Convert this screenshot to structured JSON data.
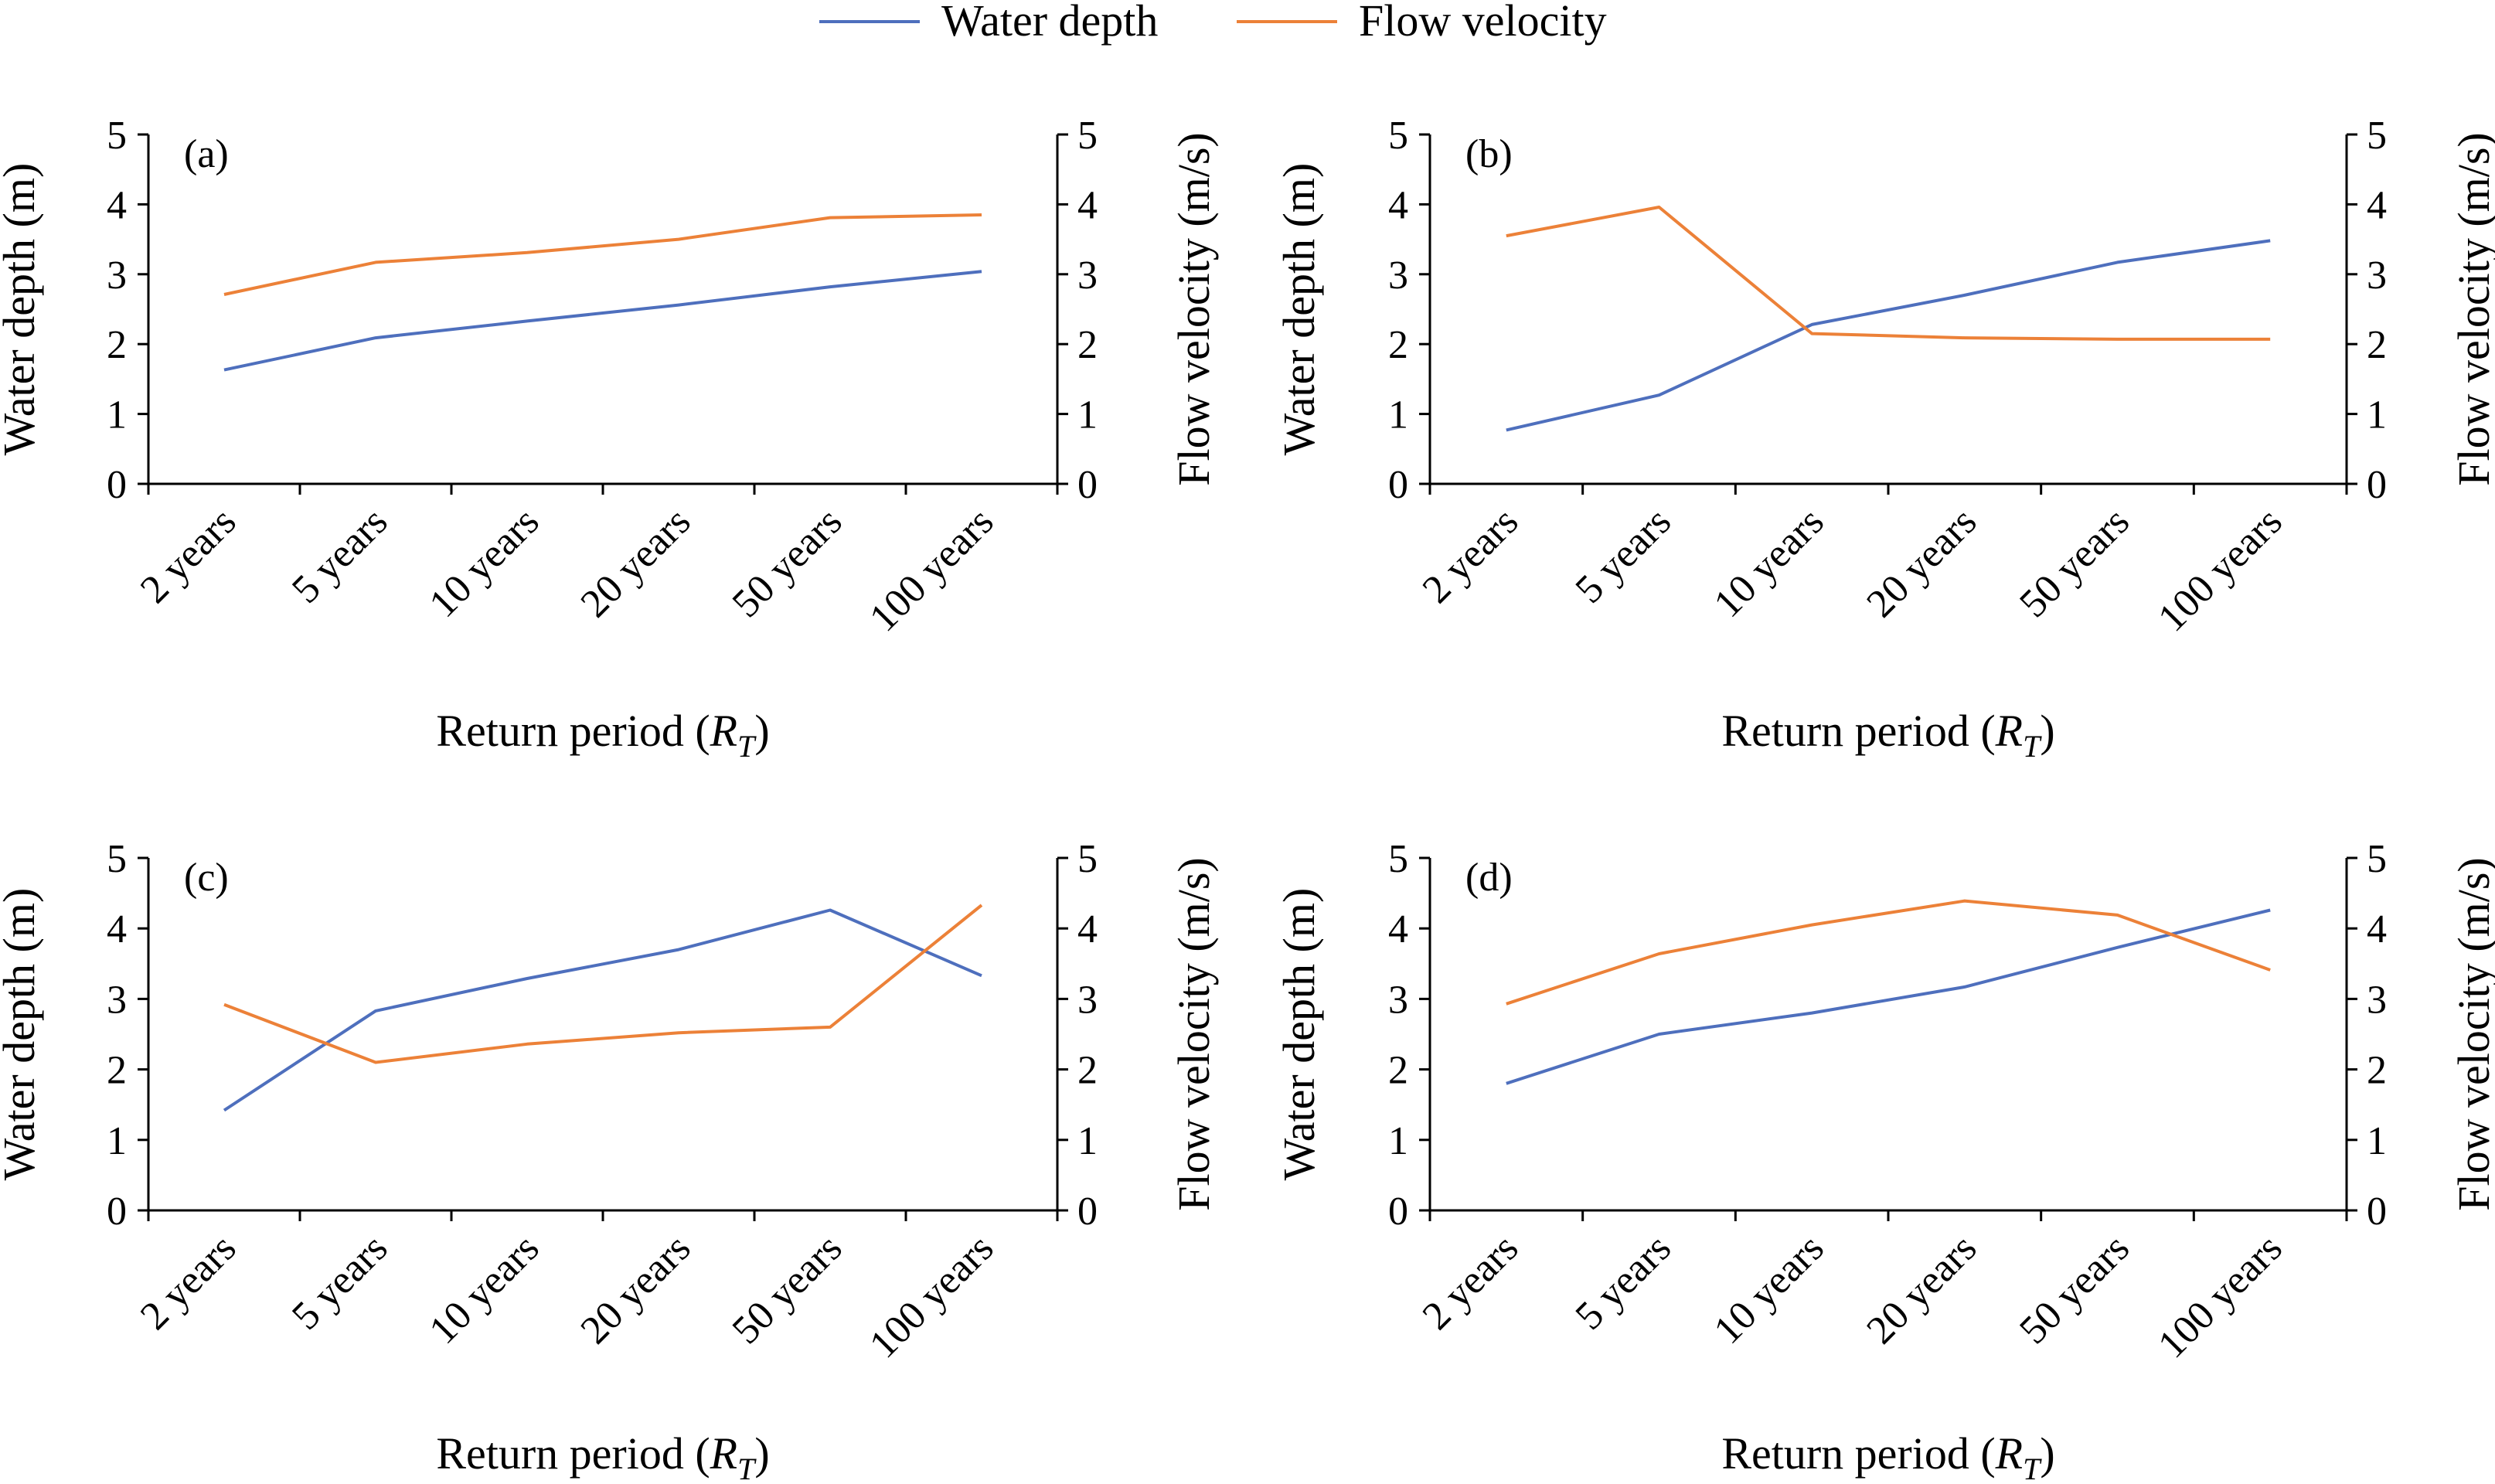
{
  "legend": {
    "items": [
      {
        "label": "Water depth",
        "color": "#4e6fbd"
      },
      {
        "label": "Flow velocity",
        "color": "#ec8138"
      }
    ]
  },
  "chart_data": [
    {
      "type": "line",
      "panel_label": "(a)",
      "categories": [
        "2 years",
        "5 years",
        "10 years",
        "20 years",
        "50 years",
        "100 years"
      ],
      "xlabel": "Return period (",
      "xlabel_sub": "T",
      "xlabel_var": "R",
      "xlabel_end": ")",
      "ylabel": "Water depth (m)",
      "y2label": "Flow velocity (m/s)",
      "ylim": [
        0,
        5
      ],
      "y2lim": [
        0,
        5
      ],
      "yticks": [
        "0",
        "1",
        "2",
        "3",
        "4",
        "5"
      ],
      "y2ticks": [
        "0",
        "1",
        "2",
        "3",
        "4",
        "5"
      ],
      "series": [
        {
          "name": "Water depth",
          "axis": "left",
          "color": "#4e6fbd",
          "values": [
            1.63,
            2.09,
            2.33,
            2.56,
            2.82,
            3.04
          ]
        },
        {
          "name": "Flow velocity",
          "axis": "right",
          "color": "#ec8138",
          "values": [
            2.71,
            3.17,
            3.31,
            3.5,
            3.81,
            3.85
          ]
        }
      ]
    },
    {
      "type": "line",
      "panel_label": "(b)",
      "categories": [
        "2 years",
        "5 years",
        "10 years",
        "20 years",
        "50 years",
        "100 years"
      ],
      "xlabel": "Return period (",
      "xlabel_sub": "T",
      "xlabel_var": "R",
      "xlabel_end": ")",
      "ylabel": "Water depth (m)",
      "y2label": "Flow velocity (m/s)",
      "ylim": [
        0,
        5
      ],
      "y2lim": [
        0,
        5
      ],
      "yticks": [
        "0",
        "1",
        "2",
        "3",
        "4",
        "5"
      ],
      "y2ticks": [
        "0",
        "1",
        "2",
        "3",
        "4",
        "5"
      ],
      "series": [
        {
          "name": "Water depth",
          "axis": "left",
          "color": "#4e6fbd",
          "values": [
            0.77,
            1.27,
            2.28,
            2.7,
            3.17,
            3.48
          ]
        },
        {
          "name": "Flow velocity",
          "axis": "right",
          "color": "#ec8138",
          "values": [
            3.55,
            3.96,
            2.15,
            2.09,
            2.07,
            2.07
          ]
        }
      ]
    },
    {
      "type": "line",
      "panel_label": "(c)",
      "categories": [
        "2 years",
        "5 years",
        "10 years",
        "20 years",
        "50 years",
        "100 years"
      ],
      "xlabel": "Return period (",
      "xlabel_sub": "T",
      "xlabel_var": "R",
      "xlabel_end": ")",
      "ylabel": "Water depth (m)",
      "y2label": "Flow velocity (m/s)",
      "ylim": [
        0,
        5
      ],
      "y2lim": [
        0,
        5
      ],
      "yticks": [
        "0",
        "1",
        "2",
        "3",
        "4",
        "5"
      ],
      "y2ticks": [
        "0",
        "1",
        "2",
        "3",
        "4",
        "5"
      ],
      "series": [
        {
          "name": "Water depth",
          "axis": "left",
          "color": "#4e6fbd",
          "values": [
            1.42,
            2.83,
            3.29,
            3.7,
            4.26,
            3.33
          ]
        },
        {
          "name": "Flow velocity",
          "axis": "right",
          "color": "#ec8138",
          "values": [
            2.92,
            2.1,
            2.36,
            2.52,
            2.6,
            4.33
          ]
        }
      ]
    },
    {
      "type": "line",
      "panel_label": "(d)",
      "categories": [
        "2 years",
        "5 years",
        "10 years",
        "20 years",
        "50 years",
        "100 years"
      ],
      "xlabel": "Return period (",
      "xlabel_sub": "T",
      "xlabel_var": "R",
      "xlabel_end": ")",
      "ylabel": "Water depth (m)",
      "y2label": "Flow velocity (m/s)",
      "ylim": [
        0,
        5
      ],
      "y2lim": [
        0,
        5
      ],
      "yticks": [
        "0",
        "1",
        "2",
        "3",
        "4",
        "5"
      ],
      "y2ticks": [
        "0",
        "1",
        "2",
        "3",
        "4",
        "5"
      ],
      "series": [
        {
          "name": "Water depth",
          "axis": "left",
          "color": "#4e6fbd",
          "values": [
            1.8,
            2.5,
            2.8,
            3.17,
            3.73,
            4.26
          ]
        },
        {
          "name": "Flow velocity",
          "axis": "right",
          "color": "#ec8138",
          "values": [
            2.93,
            3.64,
            4.05,
            4.39,
            4.19,
            3.41
          ]
        }
      ]
    }
  ]
}
